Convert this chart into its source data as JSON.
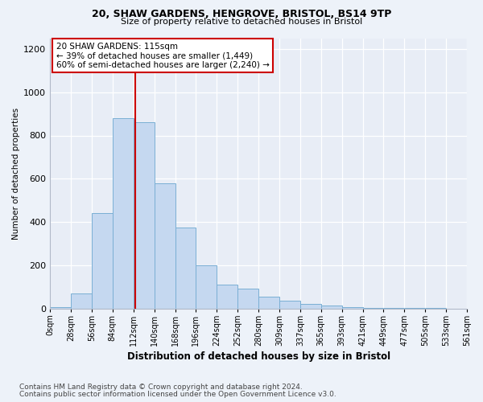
{
  "title1": "20, SHAW GARDENS, HENGROVE, BRISTOL, BS14 9TP",
  "title2": "Size of property relative to detached houses in Bristol",
  "xlabel": "Distribution of detached houses by size in Bristol",
  "ylabel": "Number of detached properties",
  "bin_labels": [
    "0sqm",
    "28sqm",
    "56sqm",
    "84sqm",
    "112sqm",
    "140sqm",
    "168sqm",
    "196sqm",
    "224sqm",
    "252sqm",
    "280sqm",
    "309sqm",
    "337sqm",
    "365sqm",
    "393sqm",
    "421sqm",
    "449sqm",
    "477sqm",
    "505sqm",
    "533sqm",
    "561sqm"
  ],
  "bar_values": [
    5,
    70,
    440,
    880,
    860,
    580,
    375,
    200,
    110,
    90,
    55,
    35,
    20,
    15,
    5,
    3,
    2,
    1,
    1,
    0
  ],
  "bar_color": "#c5d8f0",
  "bar_edge_color": "#7aafd4",
  "vline_x": 4.107,
  "annotation_text": "20 SHAW GARDENS: 115sqm\n← 39% of detached houses are smaller (1,449)\n60% of semi-detached houses are larger (2,240) →",
  "annotation_box_facecolor": "#ffffff",
  "annotation_box_edgecolor": "#cc0000",
  "vline_color": "#cc0000",
  "ylim": [
    0,
    1250
  ],
  "yticks": [
    0,
    200,
    400,
    600,
    800,
    1000,
    1200
  ],
  "footnote1": "Contains HM Land Registry data © Crown copyright and database right 2024.",
  "footnote2": "Contains public sector information licensed under the Open Government Licence v3.0.",
  "fig_bg_color": "#edf2f9",
  "plot_bg_color": "#e8edf6",
  "grid_color": "#ffffff",
  "title1_fontsize": 9,
  "title2_fontsize": 8,
  "xlabel_fontsize": 8.5,
  "ylabel_fontsize": 7.5,
  "tick_fontsize": 7,
  "annotation_fontsize": 7.5,
  "footnote_fontsize": 6.5
}
